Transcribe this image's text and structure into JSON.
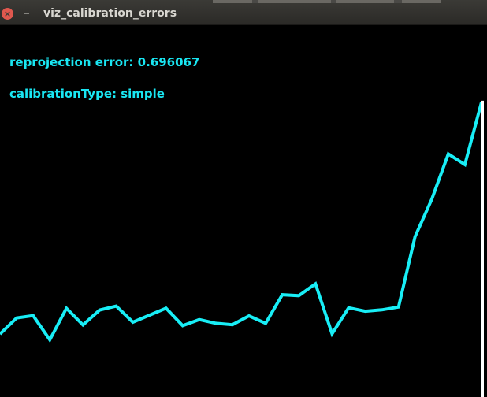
{
  "window": {
    "title": "viz_calibration_errors",
    "close_glyph": "×",
    "minimize_glyph": "–"
  },
  "overlay": {
    "reprojection_label": "reprojection error: 0.696067",
    "calibration_type_label": "calibrationType: simple"
  },
  "colors": {
    "line": "#18eef6",
    "text": "#19e6f2",
    "background": "#000000",
    "cursor_line": "#ffffff"
  },
  "chart_data": {
    "type": "line",
    "title": "",
    "xlabel": "",
    "ylabel": "",
    "grid": false,
    "legend": "none",
    "ylim": [
      0,
      1
    ],
    "x": [
      1,
      2,
      3,
      4,
      5,
      6,
      7,
      8,
      9,
      10,
      11,
      12,
      13,
      14,
      15,
      16,
      17,
      18,
      19,
      20,
      21,
      22,
      23,
      24,
      25,
      26,
      27,
      28,
      29,
      30
    ],
    "series": [
      {
        "values": [
          0.0,
          0.069,
          0.079,
          -0.025,
          0.111,
          0.039,
          0.103,
          0.12,
          0.051,
          0.081,
          0.111,
          0.036,
          0.062,
          0.046,
          0.04,
          0.078,
          0.046,
          0.169,
          0.165,
          0.216,
          0.001,
          0.113,
          0.098,
          0.104,
          0.116,
          0.419,
          0.579,
          0.775,
          0.729,
          0.997
        ]
      }
    ]
  }
}
